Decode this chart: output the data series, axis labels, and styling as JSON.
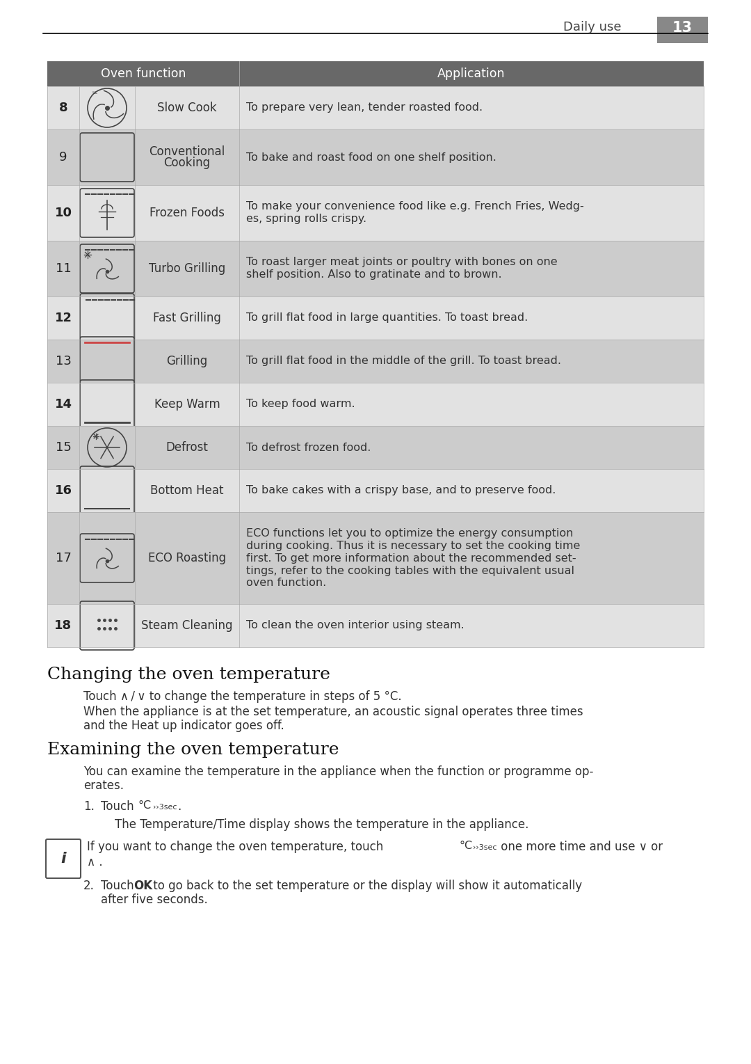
{
  "header_text": "Daily use",
  "header_number": "13",
  "table_header_bg": "#686868",
  "table_header_text_color": "#ffffff",
  "table_row_light_bg": "#e2e2e2",
  "table_row_dark_bg": "#cccccc",
  "col_headers": [
    "Oven function",
    "Application"
  ],
  "rows": [
    {
      "num": "8",
      "name": "Slow Cook",
      "desc": "To prepare very lean, tender roasted food.",
      "icon": "slow_cook",
      "tall": false
    },
    {
      "num": "9",
      "name": "Conventional\nCooking",
      "desc": "To bake and roast food on one shelf position.",
      "icon": "plain_box",
      "tall": true,
      "taller": false
    },
    {
      "num": "10",
      "name": "Frozen Foods",
      "desc": "To make your convenience food like e.g. French Fries, Wedg-\nes, spring rolls crispy.",
      "icon": "frozen",
      "tall": true,
      "taller": false
    },
    {
      "num": "11",
      "name": "Turbo Grilling",
      "desc": "To roast larger meat joints or poultry with bones on one\nshelf position. Also to gratinate and to brown.",
      "icon": "turbo",
      "tall": true,
      "taller": false
    },
    {
      "num": "12",
      "name": "Fast Grilling",
      "desc": "To grill flat food in large quantities. To toast bread.",
      "icon": "top_lines_box",
      "tall": false
    },
    {
      "num": "13",
      "name": "Grilling",
      "desc": "To grill flat food in the middle of the grill. To toast bread.",
      "icon": "top_line_box",
      "tall": false
    },
    {
      "num": "14",
      "name": "Keep Warm",
      "desc": "To keep food warm.",
      "icon": "bottom_heat",
      "tall": false
    },
    {
      "num": "15",
      "name": "Defrost",
      "desc": "To defrost frozen food.",
      "icon": "defrost",
      "tall": false
    },
    {
      "num": "16",
      "name": "Bottom Heat",
      "desc": "To bake cakes with a crispy base, and to preserve food.",
      "icon": "bottom_line",
      "tall": false
    },
    {
      "num": "17",
      "name": "ECO Roasting",
      "desc": "ECO functions let you to optimize the energy consumption\nduring cooking. Thus it is necessary to set the cooking time\nfirst. To get more information about the recommended set-\ntings, refer to the cooking tables with the equivalent usual\noven function.",
      "icon": "eco",
      "tall": true,
      "taller": true
    },
    {
      "num": "18",
      "name": "Steam Cleaning",
      "desc": "To clean the oven interior using steam.",
      "icon": "steam",
      "tall": false
    }
  ],
  "section1_title": "Changing the oven temperature",
  "section2_title": "Examining the oven temperature",
  "text_color": "#333333",
  "title_color": "#1a1a1a"
}
